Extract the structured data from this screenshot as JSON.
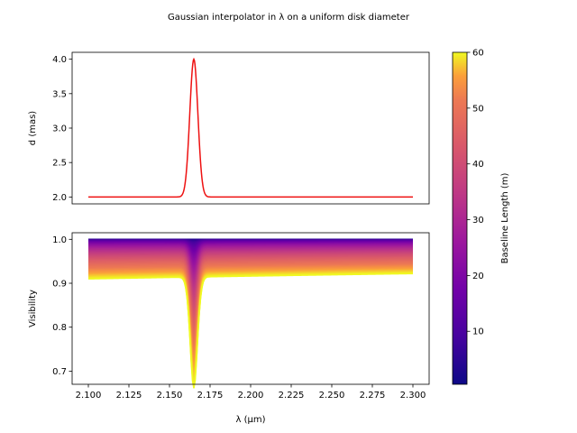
{
  "figure": {
    "title": "Gaussian interpolator in λ on a uniform disk diameter"
  },
  "chart_data": [
    {
      "type": "line",
      "panel": "top",
      "title": "",
      "xlabel": "",
      "ylabel": "d (mas)",
      "xlim": [
        2.09,
        2.31
      ],
      "ylim": [
        1.9,
        4.1
      ],
      "yticks": [
        "2.0",
        "2.5",
        "3.0",
        "3.5",
        "4.0"
      ],
      "xticks_shown": false,
      "grid": false,
      "color": "#ee1111",
      "series": [
        {
          "x_range": [
            2.1,
            2.3
          ],
          "baseline": 2.0,
          "peak_value": 4.0,
          "peak_x": 2.165,
          "peak_sigma": 0.0025
        }
      ]
    },
    {
      "type": "line",
      "panel": "bottom",
      "title": "",
      "xlabel": "λ (μm)",
      "ylabel": "Visibility",
      "xlim": [
        2.09,
        2.31
      ],
      "ylim": [
        0.67,
        1.015
      ],
      "xticks": [
        "2.100",
        "2.125",
        "2.150",
        "2.175",
        "2.200",
        "2.225",
        "2.250",
        "2.275",
        "2.300"
      ],
      "yticks": [
        "0.7",
        "0.8",
        "0.9",
        "1.0"
      ],
      "grid": false,
      "colormap": "plasma",
      "baseline_range_m": [
        0.5,
        60
      ],
      "series_description": "Visibility of a uniform disk vs wavelength, one line per baseline length (colored by baseline)",
      "min_visibility_at_max_baseline": 0.685,
      "visibility_at_max_baseline_x_start": 0.91,
      "visibility_at_max_baseline_x_end": 0.922
    }
  ],
  "colorbar": {
    "label": "Baseline Length (m)",
    "range": [
      0.5,
      60
    ],
    "ticks": [
      "10",
      "20",
      "30",
      "40",
      "50",
      "60"
    ],
    "colormap": "plasma"
  }
}
